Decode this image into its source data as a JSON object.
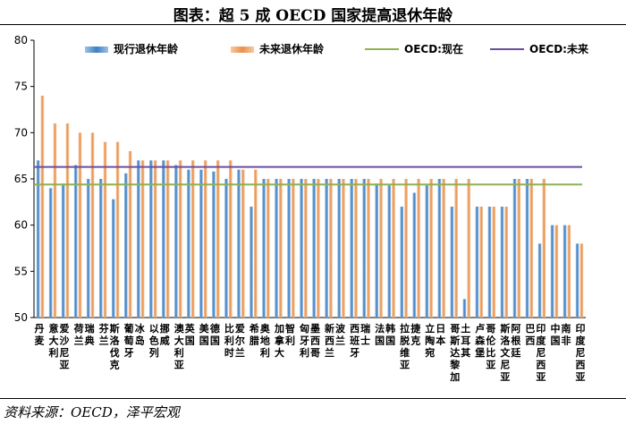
{
  "header": {
    "title": "图表：超 5 成 OECD 国家提高退休年龄"
  },
  "footer": {
    "source": "资料来源：OECD，泽平宏观"
  },
  "chart_data": {
    "type": "bar",
    "ylim": [
      50,
      80
    ],
    "yticks": [
      50,
      55,
      60,
      65,
      70,
      75,
      80
    ],
    "grid": false,
    "legend_position": "top",
    "categories": [
      "丹麦",
      "意大利",
      "爱沙尼亚",
      "荷兰",
      "瑞典",
      "芬兰",
      "斯洛伐克",
      "葡萄牙",
      "冰岛",
      "以色列",
      "挪威",
      "澳大利亚",
      "英国",
      "美国",
      "德国",
      "比利时",
      "爱尔兰",
      "希腊",
      "奥地利",
      "加拿大",
      "智利",
      "匈牙利",
      "墨西哥",
      "新西兰",
      "波兰",
      "西班牙",
      "瑞士",
      "法国",
      "韩国",
      "拉脱维亚",
      "捷克",
      "立陶宛",
      "日本",
      "哥斯达黎加",
      "土耳其",
      "卢森堡",
      "哥伦比亚",
      "斯洛文尼亚",
      "阿根廷",
      "巴西",
      "印度尼西亚",
      "中国",
      "南非",
      "印度尼西亚"
    ],
    "series": [
      {
        "name": "现行退休年龄",
        "color": "#5b9bd5",
        "values": [
          67,
          64,
          64.5,
          66.5,
          65,
          65,
          62.8,
          65.6,
          67,
          67,
          67,
          66.5,
          66,
          66,
          65.8,
          65,
          66,
          62,
          65,
          65,
          65,
          65,
          65,
          65,
          65,
          65,
          65,
          64.5,
          64.3,
          62,
          63.5,
          64.3,
          65,
          62,
          52,
          62,
          62,
          62,
          65,
          65,
          58,
          60,
          60,
          58
        ]
      },
      {
        "name": "未来退休年龄",
        "color": "#f4a460",
        "values": [
          74,
          71,
          71,
          70,
          70,
          69,
          69,
          68,
          67,
          67,
          67,
          67,
          67,
          67,
          67,
          67,
          66,
          66,
          65,
          65,
          65,
          65,
          65,
          65,
          65,
          65,
          65,
          65,
          65,
          65,
          65,
          65,
          65,
          65,
          65,
          62,
          62,
          62,
          65,
          65,
          65,
          60,
          60,
          58
        ]
      },
      {
        "name": "OECD:现在",
        "color": "#8db153",
        "type": "line",
        "value": 64.4
      },
      {
        "name": "OECD:未来",
        "color": "#6b4fa0",
        "type": "line",
        "value": 66.3
      }
    ]
  }
}
